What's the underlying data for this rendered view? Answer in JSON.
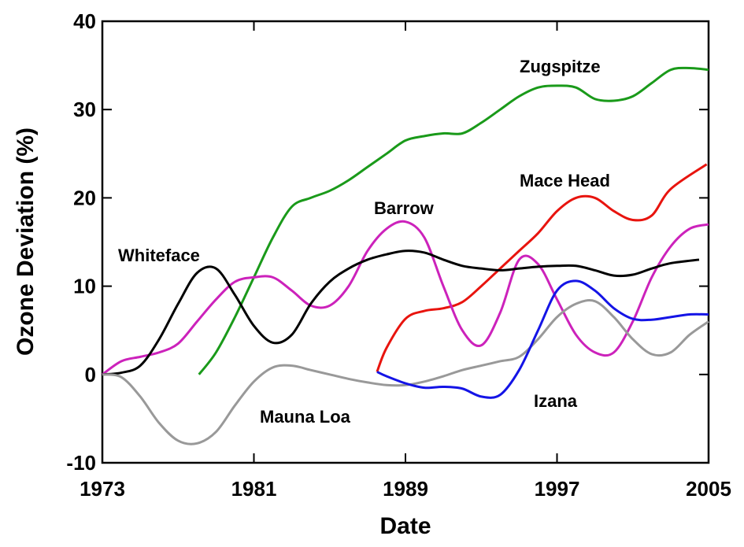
{
  "chart_data": {
    "type": "line",
    "x_label": "Date",
    "y_label": "Ozone Deviation (%)",
    "xlim": [
      1973,
      2005
    ],
    "xticks": [
      1973,
      1981,
      1989,
      1997,
      2005
    ],
    "ylim": [
      -10,
      40
    ],
    "yticks": [
      -10,
      0,
      10,
      20,
      30,
      40
    ],
    "series": [
      {
        "name": "Zugspitze",
        "color": "#1a9a1a",
        "x": [
          1978.1,
          1979,
          1980,
          1981,
          1982,
          1983,
          1984,
          1985,
          1986,
          1987,
          1988,
          1989,
          1990,
          1991,
          1992,
          1993,
          1994,
          1995,
          1996,
          1997,
          1998,
          1999,
          2000,
          2001,
          2002,
          2003,
          2004,
          2005
        ],
        "values": [
          0,
          2.5,
          6.5,
          11,
          15.5,
          19,
          20,
          20.8,
          22,
          23.5,
          25,
          26.5,
          27,
          27.3,
          27.3,
          28.5,
          30,
          31.5,
          32.5,
          32.7,
          32.5,
          31.2,
          31,
          31.5,
          33,
          34.5,
          34.7,
          34.5
        ]
      },
      {
        "name": "Mace Head",
        "color": "#e8140e",
        "x": [
          1987.5,
          1988,
          1989,
          1990,
          1991,
          1992,
          1993,
          1994,
          1995,
          1996,
          1997,
          1998,
          1999,
          2000,
          2001,
          2002,
          2003,
          2004.9
        ],
        "values": [
          0.3,
          3,
          6.3,
          7.2,
          7.5,
          8.2,
          10,
          12,
          14,
          16,
          18.5,
          20,
          20,
          18.5,
          17.5,
          18,
          21,
          23.8
        ]
      },
      {
        "name": "Barrow",
        "color": "#cc22bb",
        "x": [
          1973,
          1974,
          1975,
          1976,
          1977,
          1978,
          1979,
          1980,
          1981,
          1982,
          1983,
          1984,
          1985,
          1986,
          1987,
          1988,
          1989,
          1990,
          1991,
          1992,
          1993,
          1994,
          1995,
          1996,
          1997,
          1998,
          1999,
          2000,
          2001,
          2002,
          2003,
          2004,
          2005
        ],
        "values": [
          0,
          1.5,
          2,
          2.5,
          3.5,
          6,
          8.5,
          10.5,
          11,
          11,
          9.5,
          7.8,
          7.8,
          10,
          14,
          16.5,
          17.3,
          15.5,
          10,
          5,
          3.3,
          7,
          13,
          12.5,
          8.5,
          4.5,
          2.5,
          2.5,
          6,
          11,
          14.5,
          16.5,
          17
        ]
      },
      {
        "name": "Whiteface",
        "color": "#000000",
        "x": [
          1973,
          1974,
          1975,
          1976,
          1977,
          1978,
          1979,
          1980,
          1981,
          1982,
          1983,
          1984,
          1985,
          1986,
          1987,
          1988,
          1989,
          1990,
          1991,
          1992,
          1993,
          1994,
          1995,
          1996,
          1997,
          1998,
          1999,
          2000,
          2001,
          2002,
          2003,
          2004.5
        ],
        "values": [
          0,
          0.2,
          1,
          4,
          8,
          11.5,
          12,
          9,
          5.5,
          3.6,
          4.5,
          8,
          10.5,
          12,
          13,
          13.6,
          14,
          13.8,
          13,
          12.3,
          12,
          11.8,
          12,
          12.2,
          12.3,
          12.3,
          11.8,
          11.2,
          11.3,
          12,
          12.6,
          13
        ]
      },
      {
        "name": "Mauna Loa",
        "color": "#999999",
        "x": [
          1973,
          1974,
          1975,
          1976,
          1977,
          1978,
          1979,
          1980,
          1981,
          1982,
          1983,
          1984,
          1985,
          1986,
          1987,
          1988,
          1989,
          1990,
          1991,
          1992,
          1993,
          1994,
          1995,
          1996,
          1997,
          1998,
          1999,
          2000,
          2001,
          2002,
          2003,
          2004,
          2005
        ],
        "values": [
          0,
          -0.3,
          -2.5,
          -5.5,
          -7.5,
          -7.8,
          -6.5,
          -3.5,
          -0.8,
          0.8,
          1,
          0.5,
          0,
          -0.5,
          -0.9,
          -1.2,
          -1.2,
          -0.8,
          -0.2,
          0.5,
          1,
          1.5,
          2,
          4,
          6.5,
          8,
          8.3,
          6.5,
          4,
          2.3,
          2.5,
          4.5,
          6
        ]
      },
      {
        "name": "Izana",
        "color": "#1414e6",
        "x": [
          1987.5,
          1988,
          1989,
          1990,
          1991,
          1992,
          1993,
          1994,
          1995,
          1996,
          1997,
          1998,
          1999,
          2000,
          2001,
          2002,
          2003,
          2004,
          2005
        ],
        "values": [
          0.3,
          -0.2,
          -1,
          -1.5,
          -1.4,
          -1.6,
          -2.5,
          -2.3,
          0.5,
          5,
          9.5,
          10.6,
          9.5,
          7.5,
          6.3,
          6.2,
          6.5,
          6.8,
          6.8
        ]
      }
    ]
  }
}
